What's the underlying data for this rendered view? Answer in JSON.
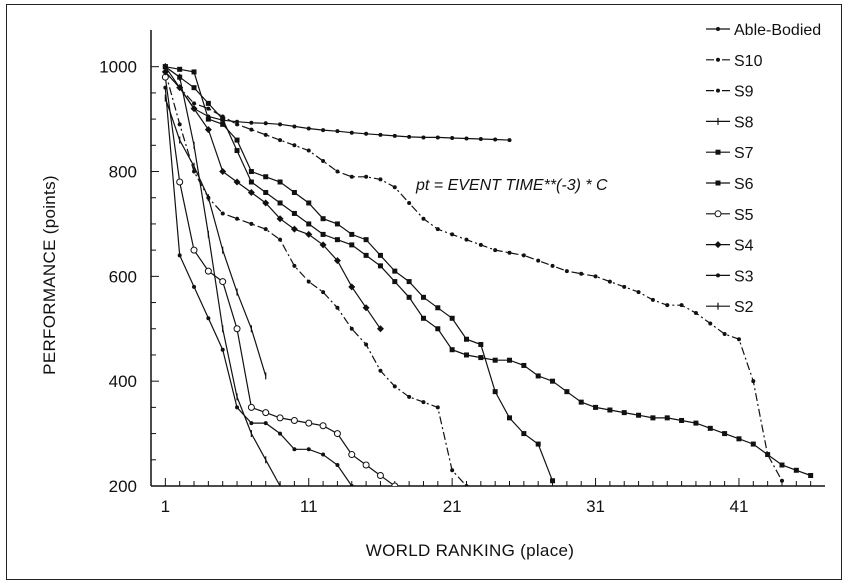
{
  "chart_data": {
    "type": "line",
    "title": "",
    "annotation": "pt = EVENT TIME**(-3) * C",
    "xlabel": "WORLD RANKING (place)",
    "ylabel": "PERFORMANCE (points)",
    "xlim": [
      0,
      47
    ],
    "ylim": [
      200,
      1070
    ],
    "xticks": [
      1,
      11,
      21,
      31,
      41
    ],
    "yticks": [
      200,
      400,
      600,
      800,
      1000
    ],
    "grid": false,
    "legend_position": "top-right",
    "series": [
      {
        "name": "Able-Bodied",
        "marker": "dot",
        "dash": "solid",
        "x": [
          1,
          2,
          3,
          4,
          5,
          6,
          7,
          8,
          9,
          10,
          11,
          12,
          13,
          14,
          15,
          16,
          17,
          18,
          19,
          20,
          21,
          22,
          23,
          24,
          25
        ],
        "y": [
          1000,
          960,
          920,
          905,
          898,
          895,
          893,
          892,
          890,
          886,
          882,
          879,
          877,
          874,
          872,
          870,
          868,
          866,
          865,
          865,
          864,
          863,
          862,
          861,
          860
        ]
      },
      {
        "name": "S10",
        "marker": "dot",
        "dash": "dashdot",
        "x": [
          1,
          2,
          3,
          4,
          5,
          6,
          7,
          8,
          9,
          10,
          11,
          12,
          13,
          14,
          15,
          16,
          17,
          18,
          19,
          20,
          21,
          22,
          23,
          24,
          25,
          26,
          27,
          28,
          29,
          30,
          31,
          32,
          33,
          34,
          35,
          36,
          37,
          38,
          39,
          40,
          41,
          42,
          43,
          44
        ],
        "y": [
          990,
          960,
          930,
          920,
          905,
          890,
          880,
          870,
          860,
          850,
          840,
          820,
          800,
          790,
          790,
          785,
          770,
          740,
          710,
          690,
          680,
          670,
          660,
          650,
          645,
          640,
          630,
          620,
          610,
          605,
          600,
          590,
          580,
          570,
          555,
          545,
          545,
          530,
          510,
          490,
          480,
          400,
          260,
          210
        ]
      },
      {
        "name": "S9",
        "marker": "dot",
        "dash": "dashdot",
        "x": [
          1,
          2,
          3,
          4,
          5,
          6,
          7,
          8,
          9,
          10,
          11,
          12,
          13,
          14,
          15,
          16,
          17,
          18,
          19,
          20,
          21,
          22
        ],
        "y": [
          990,
          890,
          800,
          750,
          720,
          710,
          700,
          690,
          670,
          620,
          590,
          570,
          540,
          500,
          470,
          420,
          390,
          370,
          360,
          350,
          230,
          200
        ]
      },
      {
        "name": "S8",
        "marker": "tick",
        "dash": "solid",
        "x": [
          1,
          2,
          3,
          4,
          5,
          6,
          7,
          8
        ],
        "y": [
          940,
          860,
          810,
          750,
          650,
          570,
          500,
          410
        ]
      },
      {
        "name": "S7",
        "marker": "square",
        "dash": "solid",
        "x": [
          1,
          2,
          3,
          4,
          5,
          6,
          7,
          8,
          9,
          10,
          11,
          12,
          13,
          14,
          15,
          16,
          17,
          18,
          19,
          20,
          21,
          22,
          23,
          24,
          25,
          26,
          27,
          28
        ],
        "y": [
          1000,
          995,
          990,
          900,
          890,
          860,
          800,
          790,
          780,
          760,
          740,
          710,
          700,
          680,
          670,
          640,
          610,
          590,
          560,
          540,
          520,
          480,
          470,
          380,
          330,
          300,
          280,
          210
        ]
      },
      {
        "name": "S6",
        "marker": "square",
        "dash": "solid",
        "x": [
          1,
          2,
          3,
          4,
          5,
          6,
          7,
          8,
          9,
          10,
          11,
          12,
          13,
          14,
          15,
          16,
          17,
          18,
          19,
          20,
          21,
          22,
          23,
          24,
          25,
          26,
          27,
          28,
          29,
          30,
          31,
          32,
          33,
          34,
          35,
          36,
          37,
          38,
          39,
          40,
          41,
          42,
          43,
          44,
          45,
          46
        ],
        "y": [
          1000,
          980,
          960,
          930,
          900,
          840,
          780,
          760,
          740,
          720,
          700,
          680,
          670,
          660,
          640,
          620,
          590,
          560,
          520,
          500,
          460,
          450,
          445,
          440,
          440,
          430,
          410,
          400,
          380,
          360,
          350,
          345,
          340,
          335,
          330,
          330,
          325,
          320,
          310,
          300,
          290,
          280,
          260,
          240,
          230,
          220
        ]
      },
      {
        "name": "S5",
        "marker": "circle",
        "dash": "solid",
        "x": [
          1,
          2,
          3,
          4,
          5,
          6,
          7,
          8,
          9,
          10,
          11,
          12,
          13,
          14,
          15,
          16,
          17
        ],
        "y": [
          980,
          780,
          650,
          610,
          590,
          500,
          350,
          340,
          330,
          325,
          320,
          315,
          300,
          260,
          240,
          220,
          200
        ]
      },
      {
        "name": "S4",
        "marker": "diamond",
        "dash": "solid",
        "x": [
          1,
          2,
          3,
          4,
          5,
          6,
          7,
          8,
          9,
          10,
          11,
          12,
          13,
          14,
          15,
          16
        ],
        "y": [
          990,
          960,
          920,
          880,
          800,
          780,
          760,
          740,
          710,
          690,
          680,
          660,
          630,
          580,
          540,
          500
        ]
      },
      {
        "name": "S3",
        "marker": "dot",
        "dash": "solid",
        "x": [
          1,
          2,
          3,
          4,
          5,
          6,
          7,
          8,
          9,
          10,
          11,
          12,
          13,
          14,
          15,
          16
        ],
        "y": [
          960,
          640,
          580,
          520,
          460,
          350,
          320,
          320,
          300,
          270,
          270,
          260,
          240,
          200,
          180,
          160
        ]
      },
      {
        "name": "S2",
        "marker": "tick",
        "dash": "solid",
        "x": [
          1,
          2,
          3,
          4,
          5,
          6,
          7,
          8,
          9,
          10
        ],
        "y": [
          1000,
          980,
          850,
          680,
          500,
          370,
          300,
          250,
          200,
          160
        ]
      }
    ]
  }
}
